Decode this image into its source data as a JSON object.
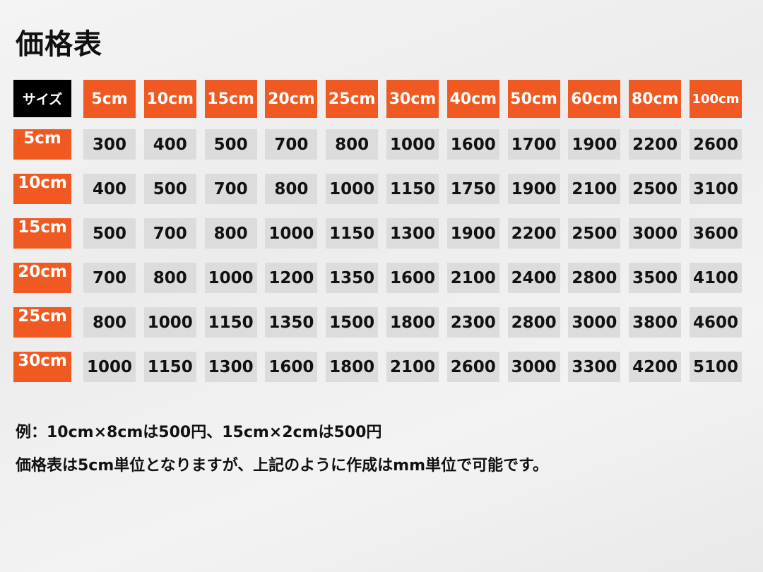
{
  "title": "価格表",
  "table": {
    "corner_label": "サイズ",
    "columns": [
      "5cm",
      "10cm",
      "15cm",
      "20cm",
      "25cm",
      "30cm",
      "40cm",
      "50cm",
      "60cm",
      "80cm",
      "100cm"
    ],
    "rows": [
      {
        "label": "5cm",
        "values": [
          300,
          400,
          500,
          700,
          800,
          1000,
          1600,
          1700,
          1900,
          2200,
          2600
        ]
      },
      {
        "label": "10cm",
        "values": [
          400,
          500,
          700,
          800,
          1000,
          1150,
          1750,
          1900,
          2100,
          2500,
          3100
        ]
      },
      {
        "label": "15cm",
        "values": [
          500,
          700,
          800,
          1000,
          1150,
          1300,
          1900,
          2200,
          2500,
          3000,
          3600
        ]
      },
      {
        "label": "20cm",
        "values": [
          700,
          800,
          1000,
          1200,
          1350,
          1600,
          2100,
          2400,
          2800,
          3500,
          4100
        ]
      },
      {
        "label": "25cm",
        "values": [
          800,
          1000,
          1150,
          1350,
          1500,
          1800,
          2300,
          2800,
          3000,
          3800,
          4600
        ]
      },
      {
        "label": "30cm",
        "values": [
          1000,
          1150,
          1300,
          1600,
          1800,
          2100,
          2600,
          3000,
          3300,
          4200,
          5100
        ]
      }
    ]
  },
  "notes": {
    "line1": "例：10cm×8cmは500円、15cm×2cmは500円",
    "line2": "価格表は5cm単位となりますが、上記のように作成はmm単位で可能です。"
  },
  "colors": {
    "accent": "#f05a22",
    "corner": "#000000",
    "cell": "#dcdcdc"
  }
}
